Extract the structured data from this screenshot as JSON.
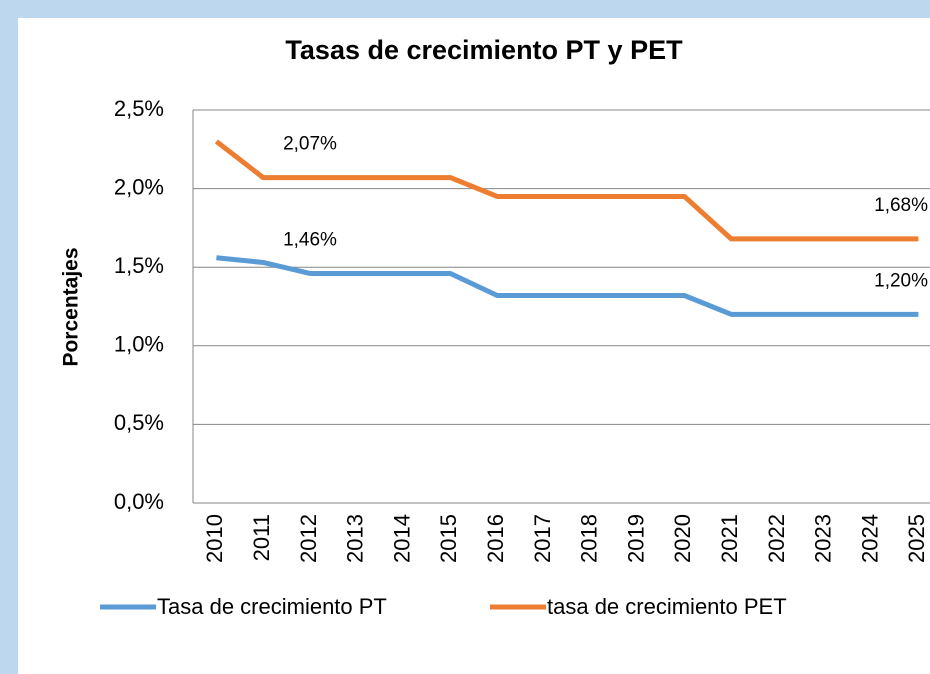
{
  "chart_data": {
    "type": "line",
    "title": "Tasas de crecimiento PT y PET",
    "y_label": "Porcentajes",
    "categories": [
      "2010",
      "2011",
      "2012",
      "2013",
      "2014",
      "2015",
      "2016",
      "2017",
      "2018",
      "2019",
      "2020",
      "2021",
      "2022",
      "2023",
      "2024",
      "2025"
    ],
    "series": [
      {
        "name": "Tasa de crecimiento PT",
        "color": "#5b9bd5",
        "values": [
          1.56,
          1.53,
          1.46,
          1.46,
          1.46,
          1.46,
          1.32,
          1.32,
          1.32,
          1.32,
          1.32,
          1.2,
          1.2,
          1.2,
          1.2,
          1.2
        ],
        "value_labels": [
          null,
          null,
          "1,46%",
          null,
          null,
          null,
          null,
          null,
          null,
          null,
          null,
          null,
          null,
          null,
          null,
          "1,20%"
        ]
      },
      {
        "name": "tasa de crecimiento PET",
        "color": "#ed7d31",
        "values": [
          2.3,
          2.07,
          2.07,
          2.07,
          2.07,
          2.07,
          1.95,
          1.95,
          1.95,
          1.95,
          1.95,
          1.68,
          1.68,
          1.68,
          1.68,
          1.68
        ],
        "value_labels": [
          null,
          null,
          "2,07%",
          null,
          null,
          null,
          null,
          null,
          null,
          null,
          null,
          null,
          null,
          null,
          null,
          "1,68%"
        ]
      }
    ],
    "ylim": [
      0,
      2.5
    ],
    "yticks": [
      {
        "value": 0,
        "label": "0,0%"
      },
      {
        "value": 0.5,
        "label": "0,5%"
      },
      {
        "value": 1,
        "label": "1,0%"
      },
      {
        "value": 1.5,
        "label": "1,5%"
      },
      {
        "value": 2,
        "label": "2,0%"
      },
      {
        "value": 2.5,
        "label": "2,5%"
      }
    ],
    "grid": true,
    "legend": "bottom"
  }
}
